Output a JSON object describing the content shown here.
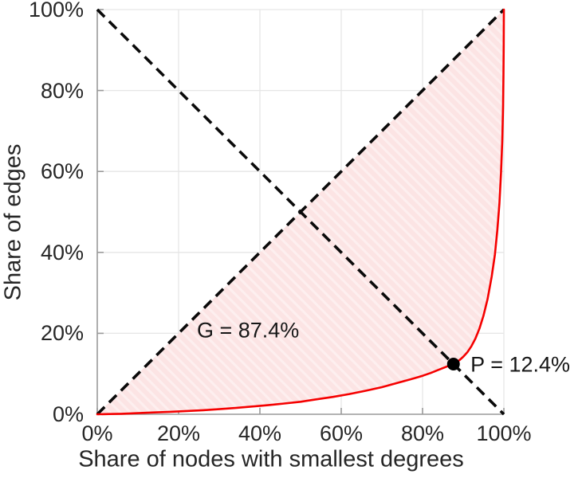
{
  "chart_data": {
    "type": "line",
    "title": "",
    "xlabel": "Share of nodes with smallest degrees",
    "ylabel": "Share of edges",
    "xlim": [
      0,
      100
    ],
    "ylim": [
      0,
      100
    ],
    "grid": true,
    "legend": "none",
    "x_ticks": [
      0,
      20,
      40,
      60,
      80,
      100
    ],
    "x_tick_labels": [
      "0%",
      "20%",
      "40%",
      "60%",
      "80%",
      "100%"
    ],
    "y_ticks": [
      0,
      20,
      40,
      60,
      80,
      100
    ],
    "y_tick_labels": [
      "0%",
      "20%",
      "40%",
      "60%",
      "80%",
      "100%"
    ],
    "series": [
      {
        "name": "lorenz-curve",
        "type": "line",
        "style": "solid",
        "color": "#f50000",
        "width": 2.6,
        "points": [
          [
            0,
            0
          ],
          [
            3,
            0.05
          ],
          [
            6,
            0.12
          ],
          [
            10,
            0.28
          ],
          [
            14,
            0.45
          ],
          [
            18,
            0.62
          ],
          [
            22,
            0.8
          ],
          [
            26,
            1.0
          ],
          [
            30,
            1.25
          ],
          [
            34,
            1.55
          ],
          [
            38,
            1.9
          ],
          [
            42,
            2.25
          ],
          [
            46,
            2.65
          ],
          [
            50,
            3.1
          ],
          [
            54,
            3.7
          ],
          [
            58,
            4.3
          ],
          [
            62,
            5.0
          ],
          [
            66,
            5.8
          ],
          [
            70,
            6.7
          ],
          [
            74,
            7.8
          ],
          [
            78,
            8.9
          ],
          [
            80,
            9.5
          ],
          [
            82,
            10.2
          ],
          [
            84,
            11.0
          ],
          [
            86,
            11.8
          ],
          [
            87.6,
            12.4
          ],
          [
            89,
            13.3
          ],
          [
            90,
            14.2
          ],
          [
            91,
            15.3
          ],
          [
            92,
            16.8
          ],
          [
            93,
            18.7
          ],
          [
            94,
            21.2
          ],
          [
            95,
            24.4
          ],
          [
            96,
            28.5
          ],
          [
            97,
            34.0
          ],
          [
            97.8,
            39.5
          ],
          [
            98.4,
            45.5
          ],
          [
            98.9,
            52.0
          ],
          [
            99.3,
            59.5
          ],
          [
            99.6,
            67.5
          ],
          [
            99.8,
            76.0
          ],
          [
            99.9,
            84.0
          ],
          [
            99.96,
            91.0
          ],
          [
            100,
            100
          ]
        ]
      },
      {
        "name": "equality-diagonal",
        "type": "line",
        "style": "dashed",
        "color": "#0a0a0a",
        "width": 3.6,
        "points": [
          [
            0,
            0
          ],
          [
            100,
            100
          ]
        ]
      },
      {
        "name": "anti-diagonal",
        "type": "line",
        "style": "dashed",
        "color": "#0a0a0a",
        "width": 3.6,
        "points": [
          [
            0,
            100
          ],
          [
            100,
            0
          ]
        ]
      }
    ],
    "fill_between": {
      "upper": "equality-diagonal",
      "lower": "lorenz-curve",
      "color": "#fce4e4",
      "hatch_color": "#fdefef"
    },
    "marker": {
      "name": "intersection-point",
      "x": 87.6,
      "y": 12.4,
      "color": "#000000",
      "radius": 8
    },
    "annotations": [
      {
        "name": "gini-label",
        "text": "G = 87.4%",
        "x": 24.5,
        "y": 20.7
      },
      {
        "name": "p-label",
        "text": "P = 12.4%",
        "x": 91.8,
        "y": 12.2
      }
    ],
    "gini_coefficient": "87.4%",
    "p_value": "12.4%",
    "colors": {
      "grid": "#e6e6e6",
      "axis": "#9a9a9a",
      "tick_text": "#262626",
      "title_text": "#262626",
      "annotation_text": "#161616",
      "background": "#ffffff"
    }
  }
}
